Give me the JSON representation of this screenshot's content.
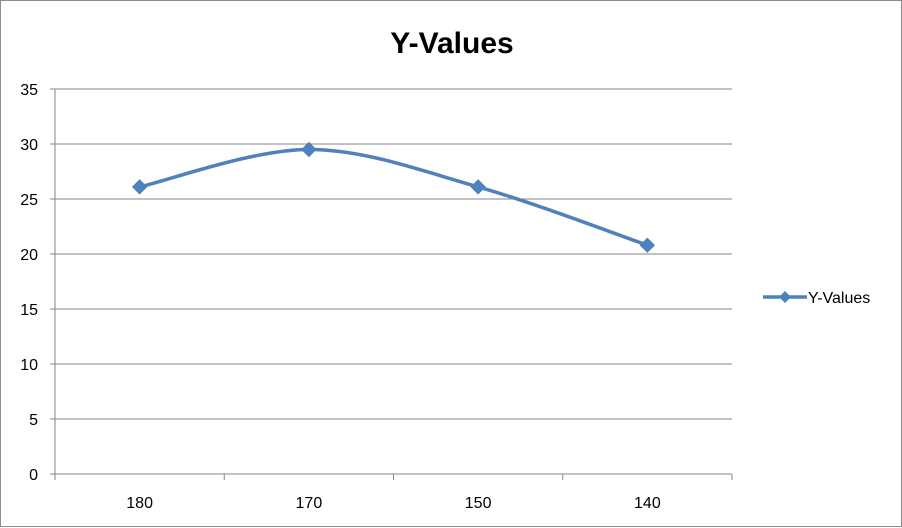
{
  "chart_data": {
    "type": "line",
    "title": "Y-Values",
    "categories": [
      "180",
      "170",
      "150",
      "140"
    ],
    "series": [
      {
        "name": "Y-Values",
        "values": [
          26.1,
          29.5,
          26.1,
          20.8
        ]
      }
    ],
    "ylim": [
      0,
      35
    ],
    "yticks": [
      0,
      5,
      10,
      15,
      20,
      25,
      30,
      35
    ],
    "grid": true,
    "smooth": true,
    "marker": "diamond",
    "legend": "right",
    "colors": {
      "series": "#4f81bd",
      "grid": "#868686",
      "axis": "#868686"
    }
  }
}
